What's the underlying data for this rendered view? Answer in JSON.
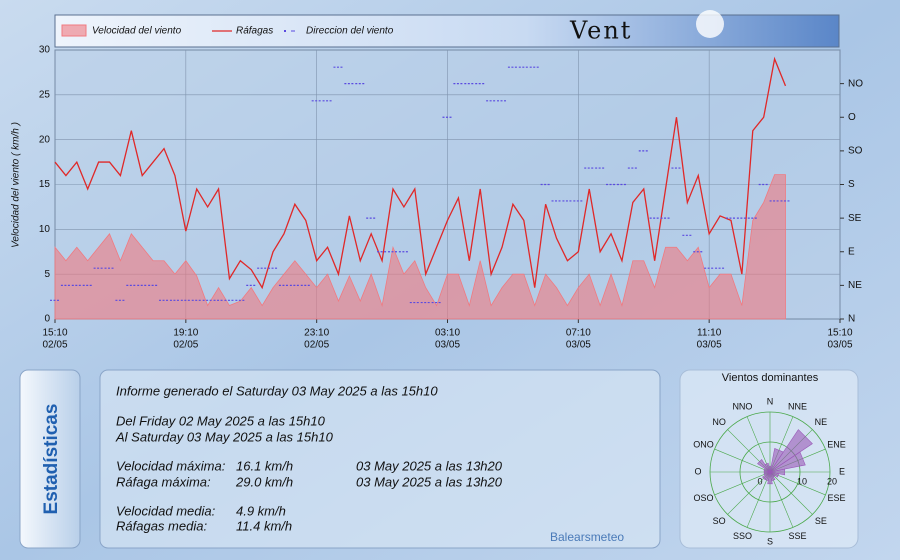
{
  "chart_data": [
    {
      "type": "line",
      "title": "Vent",
      "ylabel": "Velocidad del viento ( km/h )",
      "x": [
        "02/05 15:10",
        "02/05 15:30",
        "02/05 15:50",
        "02/05 16:10",
        "02/05 16:30",
        "02/05 16:50",
        "02/05 17:10",
        "02/05 17:30",
        "02/05 17:50",
        "02/05 18:10",
        "02/05 18:30",
        "02/05 18:50",
        "02/05 19:10",
        "02/05 19:30",
        "02/05 19:50",
        "02/05 20:10",
        "02/05 20:30",
        "02/05 20:50",
        "02/05 21:10",
        "02/05 21:30",
        "02/05 21:50",
        "02/05 22:10",
        "02/05 22:30",
        "02/05 22:50",
        "02/05 23:10",
        "02/05 23:30",
        "02/05 23:50",
        "03/05 00:10",
        "03/05 00:30",
        "03/05 00:50",
        "03/05 01:10",
        "03/05 01:30",
        "03/05 01:50",
        "03/05 02:10",
        "03/05 02:30",
        "03/05 02:50",
        "03/05 03:10",
        "03/05 03:30",
        "03/05 03:50",
        "03/05 04:10",
        "03/05 04:30",
        "03/05 04:50",
        "03/05 05:10",
        "03/05 05:30",
        "03/05 05:50",
        "03/05 06:10",
        "03/05 06:30",
        "03/05 06:50",
        "03/05 07:10",
        "03/05 07:30",
        "03/05 07:50",
        "03/05 08:10",
        "03/05 08:30",
        "03/05 08:50",
        "03/05 09:10",
        "03/05 09:30",
        "03/05 09:50",
        "03/05 10:10",
        "03/05 10:30",
        "03/05 10:50",
        "03/05 11:10",
        "03/05 11:30",
        "03/05 11:50",
        "03/05 12:10",
        "03/05 12:30",
        "03/05 12:50",
        "03/05 13:10",
        "03/05 13:30"
      ],
      "xlim": [
        "02/05 15:10",
        "03/05 15:10"
      ],
      "xticks": [
        {
          "value": "02/05 15:10",
          "time": "15:10",
          "date": "02/05"
        },
        {
          "value": "02/05 19:10",
          "time": "19:10",
          "date": "02/05"
        },
        {
          "value": "02/05 23:10",
          "time": "23:10",
          "date": "02/05"
        },
        {
          "value": "03/05 03:10",
          "time": "03:10",
          "date": "03/05"
        },
        {
          "value": "03/05 07:10",
          "time": "07:10",
          "date": "03/05"
        },
        {
          "value": "03/05 11:10",
          "time": "11:10",
          "date": "03/05"
        },
        {
          "value": "03/05 15:10",
          "time": "15:10",
          "date": "03/05"
        }
      ],
      "ylim": [
        0,
        30
      ],
      "yticks": [
        0,
        5,
        10,
        15,
        20,
        25,
        30
      ],
      "y2lim": [
        0,
        360
      ],
      "y2ticks": [
        {
          "value": 0,
          "label": "N"
        },
        {
          "value": 45,
          "label": "NE"
        },
        {
          "value": 90,
          "label": "E"
        },
        {
          "value": 135,
          "label": "SE"
        },
        {
          "value": 180,
          "label": "S"
        },
        {
          "value": 225,
          "label": "SO"
        },
        {
          "value": 270,
          "label": "O"
        },
        {
          "value": 315,
          "label": "NO"
        }
      ],
      "grid": true,
      "series": [
        {
          "name": "Velocidad del viento",
          "mark": "area",
          "color": "#f07a80",
          "values": [
            8,
            6.5,
            8,
            6.5,
            8,
            9.5,
            6.5,
            9.5,
            8,
            6.5,
            6.5,
            5,
            6.5,
            4.8,
            1.5,
            3.5,
            1.5,
            2,
            3.5,
            1.5,
            3.5,
            5,
            6.5,
            5,
            3.5,
            5,
            2,
            4.8,
            2,
            5,
            1.5,
            8,
            5,
            6.5,
            3.5,
            1.5,
            5,
            5,
            1.5,
            6.5,
            1.5,
            3.5,
            5,
            5,
            1.5,
            5,
            3.5,
            1.5,
            3.5,
            5,
            1.5,
            5,
            1.5,
            6.5,
            6.5,
            3.5,
            8,
            8,
            6.5,
            8,
            3.5,
            5,
            5,
            1.5,
            11,
            13,
            16.1,
            16.1
          ]
        },
        {
          "name": "Ráfagas",
          "mark": "line",
          "color": "#e02828",
          "values": [
            17.5,
            16,
            17.5,
            14.5,
            17.5,
            17.5,
            16,
            21,
            16,
            17.5,
            19,
            16,
            9.8,
            14.5,
            12.5,
            14.5,
            4.5,
            6.5,
            5.5,
            3.5,
            7.5,
            9.5,
            12.8,
            11,
            6.5,
            8,
            5,
            11.5,
            6.5,
            9.5,
            6.5,
            14.5,
            12.5,
            14.5,
            5,
            8,
            11,
            13.5,
            6.5,
            14.5,
            5,
            8,
            12.8,
            11,
            3.5,
            12.8,
            9,
            6.5,
            7.5,
            14.5,
            7.5,
            9.5,
            6.5,
            13,
            14.5,
            6.5,
            14.5,
            22.5,
            13,
            16,
            9.5,
            11.5,
            11,
            5,
            21,
            22.5,
            29,
            26
          ]
        },
        {
          "name": "Direccion del viento",
          "mark": "dash",
          "axis": "y2",
          "color": "#5a4ae0",
          "values": [
            25,
            45,
            45,
            45,
            68,
            68,
            25,
            45,
            45,
            45,
            25,
            25,
            25,
            25,
            25,
            25,
            25,
            25,
            45,
            68,
            68,
            45,
            45,
            45,
            292,
            292,
            337,
            315,
            315,
            135,
            90,
            90,
            90,
            22,
            22,
            22,
            270,
            315,
            315,
            315,
            292,
            292,
            337,
            337,
            337,
            180,
            158,
            158,
            158,
            202,
            202,
            180,
            180,
            202,
            225,
            135,
            135,
            202,
            112,
            90,
            68,
            68,
            135,
            135,
            135,
            180,
            158,
            158
          ]
        }
      ]
    },
    {
      "type": "radar",
      "title": "Vientos dominantes",
      "categories": [
        "N",
        "NNE",
        "NE",
        "ENE",
        "E",
        "ESE",
        "SE",
        "SSE",
        "S",
        "SSO",
        "SO",
        "OSO",
        "O",
        "ONO",
        "NO",
        "NNO"
      ],
      "values": [
        2,
        8,
        17,
        12,
        5,
        3,
        2,
        3,
        4,
        3,
        3,
        2,
        2,
        2,
        5,
        3
      ],
      "color": "#9a5ab8",
      "rlim": [
        0,
        20
      ],
      "rticks": [
        0,
        10,
        20
      ]
    }
  ],
  "stats": {
    "tab": "Estadísticas",
    "generated": "Informe generado el Saturday 03 May 2025 a las 15h10",
    "from": "Del Friday 02 May 2025 a las 15h10",
    "to": "Al Saturday 03 May 2025 a las 15h10",
    "rows": [
      [
        "Velocidad máxima:",
        "16.1 km/h",
        "03 May 2025 a las 13h20"
      ],
      [
        "Ráfaga máxima:",
        "29.0 km/h",
        "03 May 2025 a las 13h20"
      ]
    ],
    "means": [
      [
        "Velocidad media:",
        "4.9 km/h"
      ],
      [
        "Ráfagas media:",
        "11.4 km/h"
      ]
    ],
    "credit": "Balearsmeteo"
  }
}
